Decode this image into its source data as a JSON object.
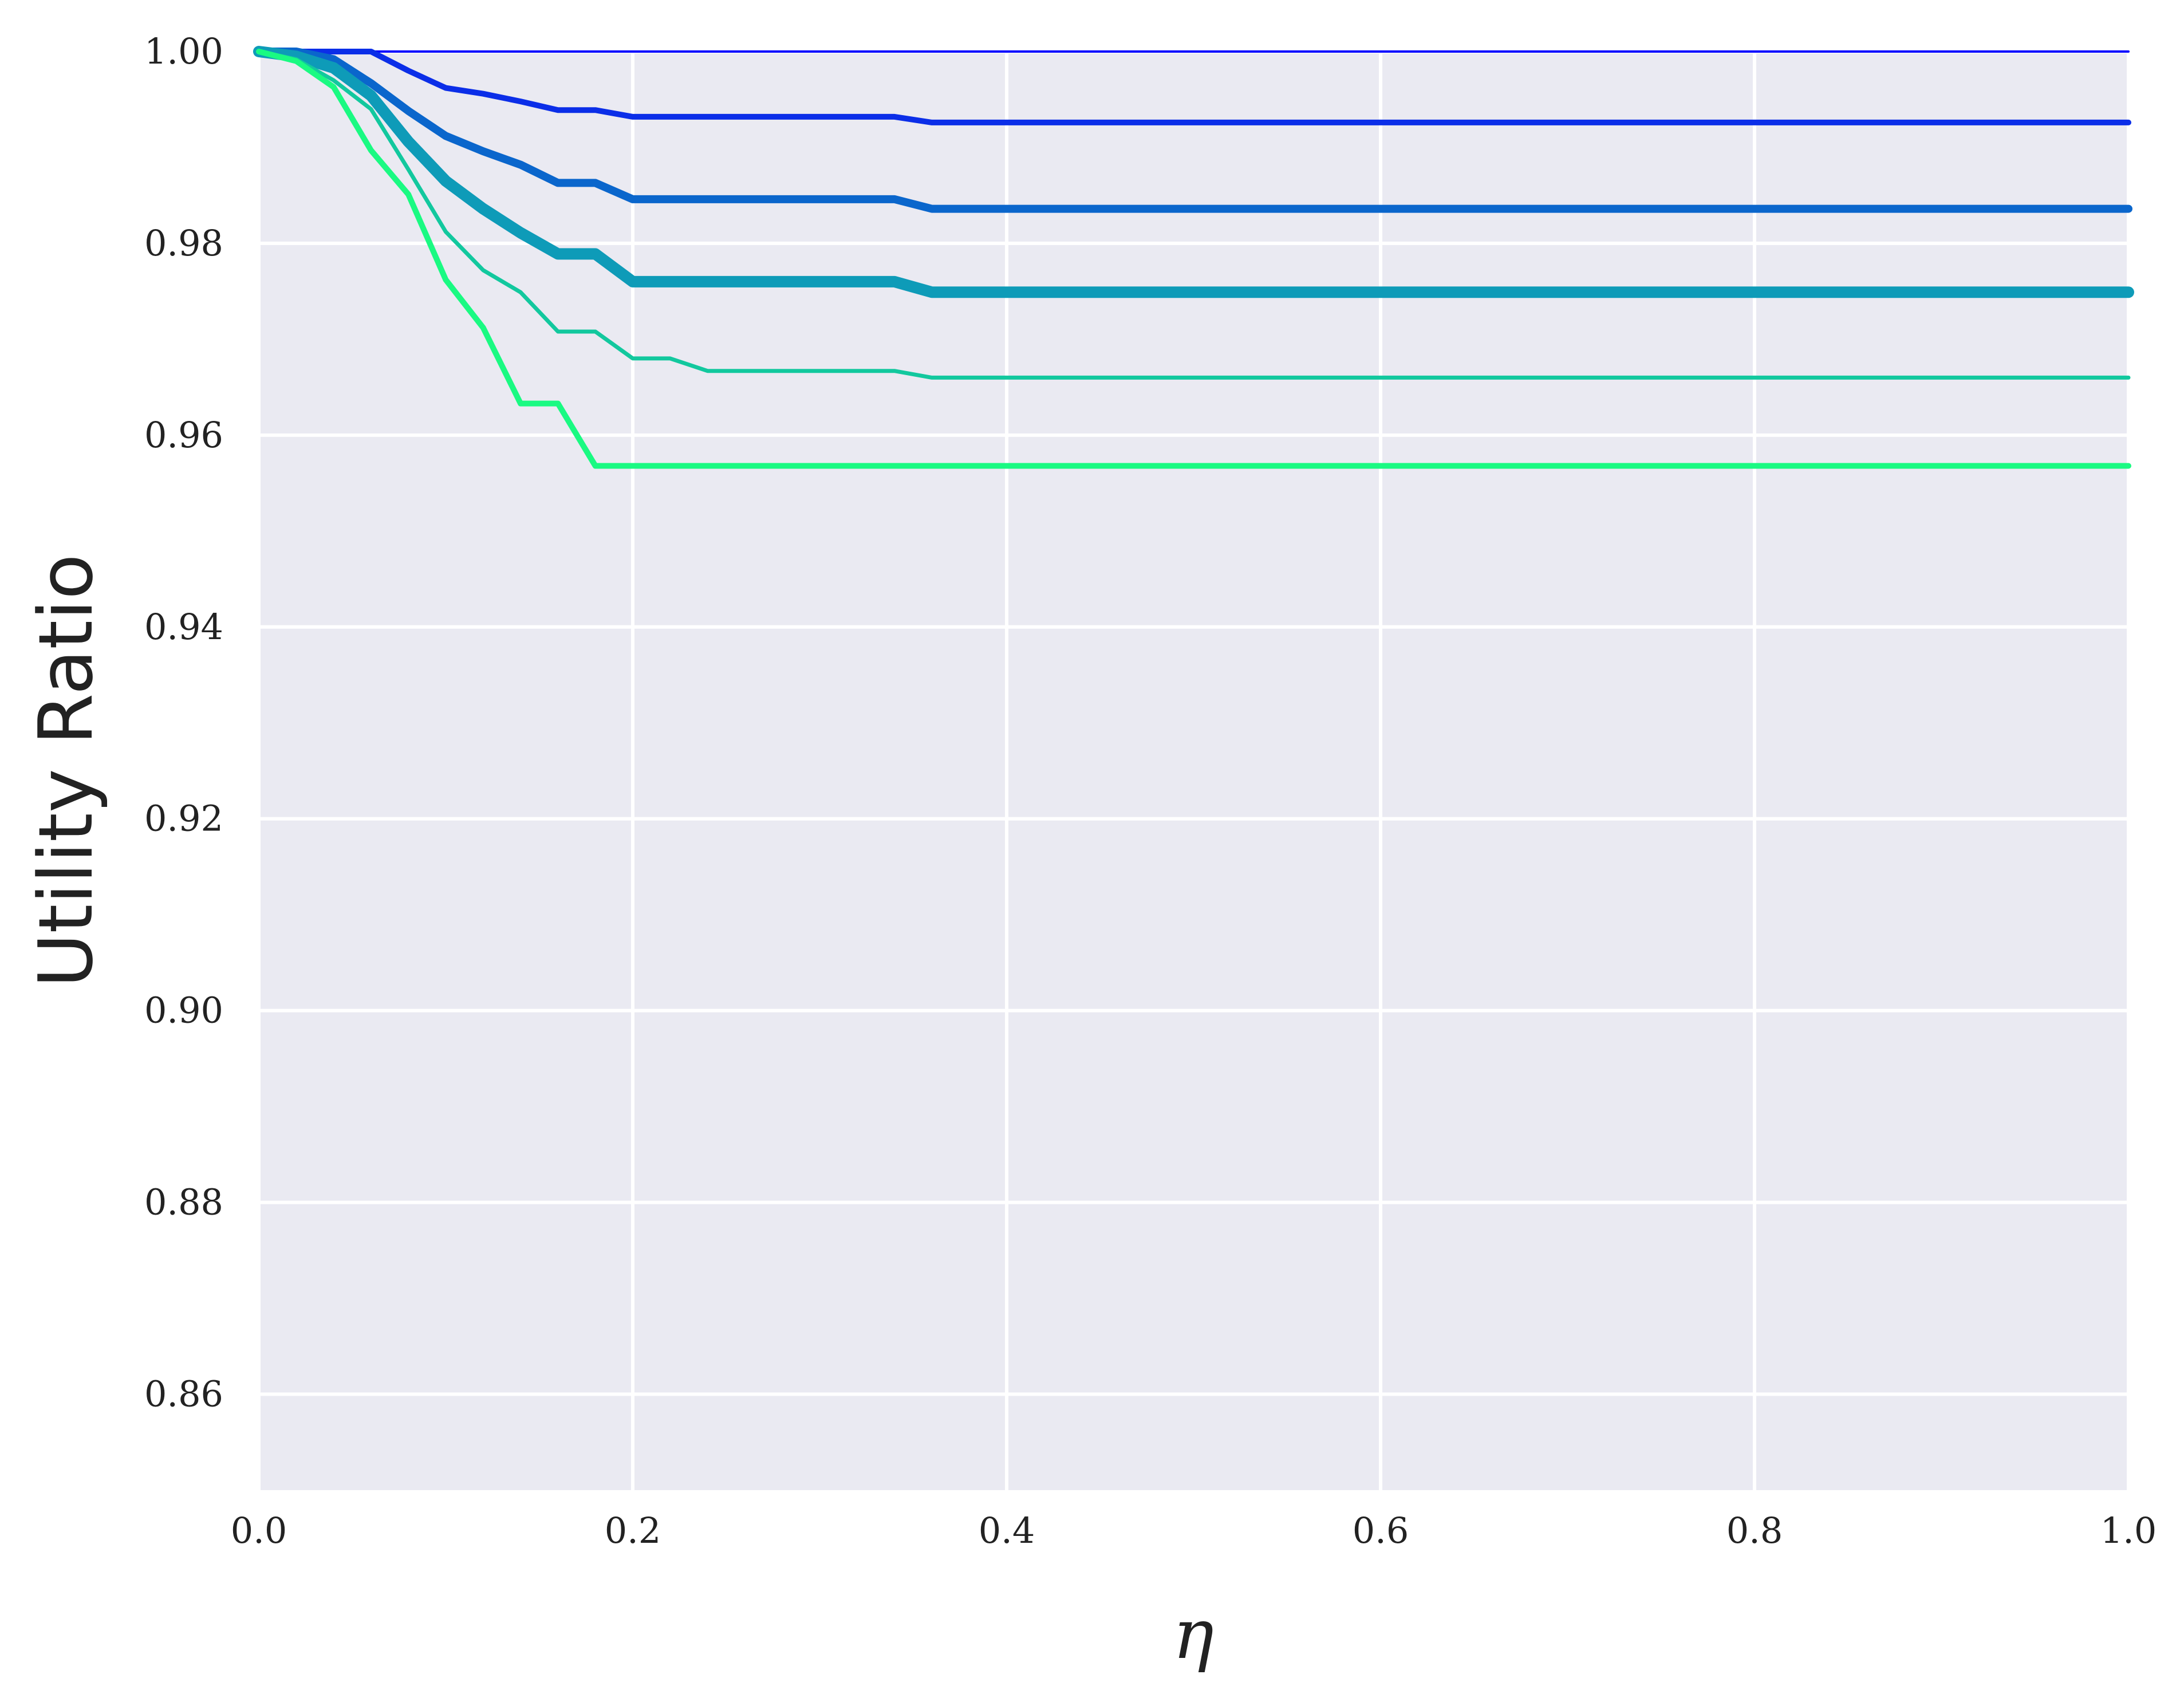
{
  "chart_data": {
    "type": "line",
    "xlabel": "η",
    "ylabel": "Utility Ratio",
    "xlim": [
      0.0,
      1.0
    ],
    "ylim": [
      0.85,
      1.0
    ],
    "x_ticks": [
      "0.0",
      "0.2",
      "0.4",
      "0.6",
      "0.8",
      "1.0"
    ],
    "y_ticks": [
      "0.86",
      "0.88",
      "0.90",
      "0.92",
      "0.94",
      "0.96",
      "0.98",
      "1.00"
    ],
    "grid": true,
    "legend": "none",
    "background": "#eaeaf2",
    "series": [
      {
        "color": "#0000ff",
        "points": [
          [
            0.0,
            1.0
          ],
          [
            1.0,
            1.0
          ]
        ]
      },
      {
        "color": "#0b2ee8",
        "points": [
          [
            0.0,
            1.0
          ],
          [
            0.04,
            1.0
          ],
          [
            0.06,
            1.0
          ],
          [
            0.08,
            0.998
          ],
          [
            0.1,
            0.9962
          ],
          [
            0.12,
            0.9956
          ],
          [
            0.14,
            0.9948
          ],
          [
            0.16,
            0.9939
          ],
          [
            0.18,
            0.9939
          ],
          [
            0.2,
            0.9932
          ],
          [
            0.22,
            0.9932
          ],
          [
            0.34,
            0.9932
          ],
          [
            0.36,
            0.9926
          ],
          [
            1.0,
            0.9926
          ]
        ]
      },
      {
        "color": "#0a66cc",
        "points": [
          [
            0.0,
            1.0
          ],
          [
            0.02,
            1.0
          ],
          [
            0.04,
            0.9992
          ],
          [
            0.06,
            0.9967
          ],
          [
            0.08,
            0.9938
          ],
          [
            0.1,
            0.9912
          ],
          [
            0.12,
            0.9896
          ],
          [
            0.14,
            0.9882
          ],
          [
            0.16,
            0.9863
          ],
          [
            0.18,
            0.9863
          ],
          [
            0.2,
            0.9846
          ],
          [
            0.22,
            0.9846
          ],
          [
            0.34,
            0.9846
          ],
          [
            0.36,
            0.9836
          ],
          [
            1.0,
            0.9836
          ]
        ]
      },
      {
        "color": "#0e9bb8",
        "points": [
          [
            0.0,
            1.0
          ],
          [
            0.02,
            0.9995
          ],
          [
            0.04,
            0.9983
          ],
          [
            0.06,
            0.9954
          ],
          [
            0.08,
            0.9906
          ],
          [
            0.1,
            0.9865
          ],
          [
            0.12,
            0.9836
          ],
          [
            0.14,
            0.9811
          ],
          [
            0.16,
            0.9789
          ],
          [
            0.18,
            0.9789
          ],
          [
            0.2,
            0.976
          ],
          [
            0.22,
            0.976
          ],
          [
            0.34,
            0.976
          ],
          [
            0.36,
            0.9749
          ],
          [
            1.0,
            0.9749
          ]
        ]
      },
      {
        "color": "#12c89e",
        "points": [
          [
            0.0,
            1.0
          ],
          [
            0.02,
            0.9992
          ],
          [
            0.04,
            0.997
          ],
          [
            0.06,
            0.994
          ],
          [
            0.08,
            0.9877
          ],
          [
            0.1,
            0.9812
          ],
          [
            0.12,
            0.9772
          ],
          [
            0.14,
            0.9749
          ],
          [
            0.16,
            0.9708
          ],
          [
            0.18,
            0.9708
          ],
          [
            0.2,
            0.968
          ],
          [
            0.22,
            0.968
          ],
          [
            0.24,
            0.9667
          ],
          [
            0.34,
            0.9667
          ],
          [
            0.36,
            0.966
          ],
          [
            1.0,
            0.966
          ]
        ]
      },
      {
        "color": "#1afa82",
        "points": [
          [
            0.0,
            1.0
          ],
          [
            0.02,
            0.999
          ],
          [
            0.04,
            0.9963
          ],
          [
            0.06,
            0.9897
          ],
          [
            0.08,
            0.9851
          ],
          [
            0.1,
            0.9762
          ],
          [
            0.12,
            0.9712
          ],
          [
            0.14,
            0.9633
          ],
          [
            0.16,
            0.9633
          ],
          [
            0.18,
            0.9568
          ],
          [
            0.2,
            0.9568
          ],
          [
            1.0,
            0.9568
          ]
        ]
      }
    ]
  }
}
